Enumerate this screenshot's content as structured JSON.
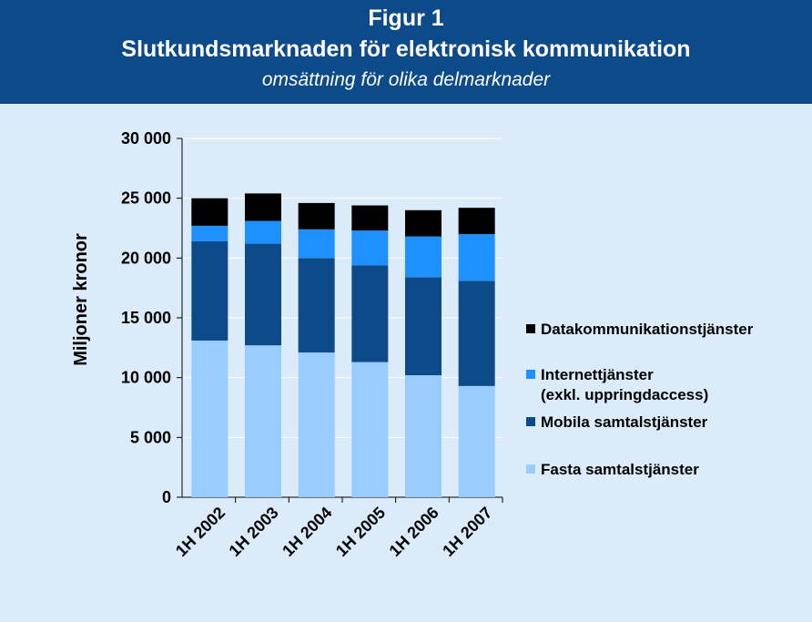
{
  "header": {
    "figure_label": "Figur 1",
    "title": "Slutkundsmarknaden för elektronisk kommunikation",
    "subtitle": "omsättning för olika delmarknader"
  },
  "colors": {
    "header_bg": "#0d4a8a",
    "background": "#dcebfa"
  },
  "chart_data": {
    "type": "bar",
    "stacked": true,
    "title": "",
    "xlabel": "",
    "ylabel": "Miljoner kronor",
    "ylim": [
      0,
      30000
    ],
    "yticks": [
      0,
      5000,
      10000,
      15000,
      20000,
      25000,
      30000
    ],
    "ytick_labels": [
      "0",
      "5 000",
      "10 000",
      "15 000",
      "20 000",
      "25 000",
      "30 000"
    ],
    "grid": true,
    "legend_position": "right",
    "categories": [
      "1H 2002",
      "1H 2003",
      "1H 2004",
      "1H 2005",
      "1H 2006",
      "1H 2007"
    ],
    "series": [
      {
        "name": "Fasta samtalstjänster",
        "color": "#99ccff",
        "values": [
          13100,
          12700,
          12100,
          11300,
          10200,
          9300
        ]
      },
      {
        "name": "Mobila samtalstjänster",
        "color": "#0d4a8a",
        "values": [
          8300,
          8500,
          7900,
          8100,
          8200,
          8800
        ]
      },
      {
        "name": "Internettjänster (exkl. uppringdaccess)",
        "color": "#1e90ff",
        "values": [
          1300,
          1900,
          2400,
          2900,
          3400,
          3900
        ]
      },
      {
        "name": "Datakommunikationstjänster",
        "color": "#000000",
        "values": [
          2300,
          2300,
          2200,
          2100,
          2200,
          2200
        ]
      }
    ],
    "legend": [
      {
        "series_index": 3,
        "lines": [
          "Datakommunikationstjänster"
        ]
      },
      {
        "series_index": 2,
        "lines": [
          "Internettjänster",
          "(exkl. uppringdaccess)"
        ]
      },
      {
        "series_index": 1,
        "lines": [
          "Mobila samtalstjänster"
        ]
      },
      {
        "series_index": 0,
        "lines": [
          "Fasta samtalstjänster"
        ]
      }
    ]
  }
}
